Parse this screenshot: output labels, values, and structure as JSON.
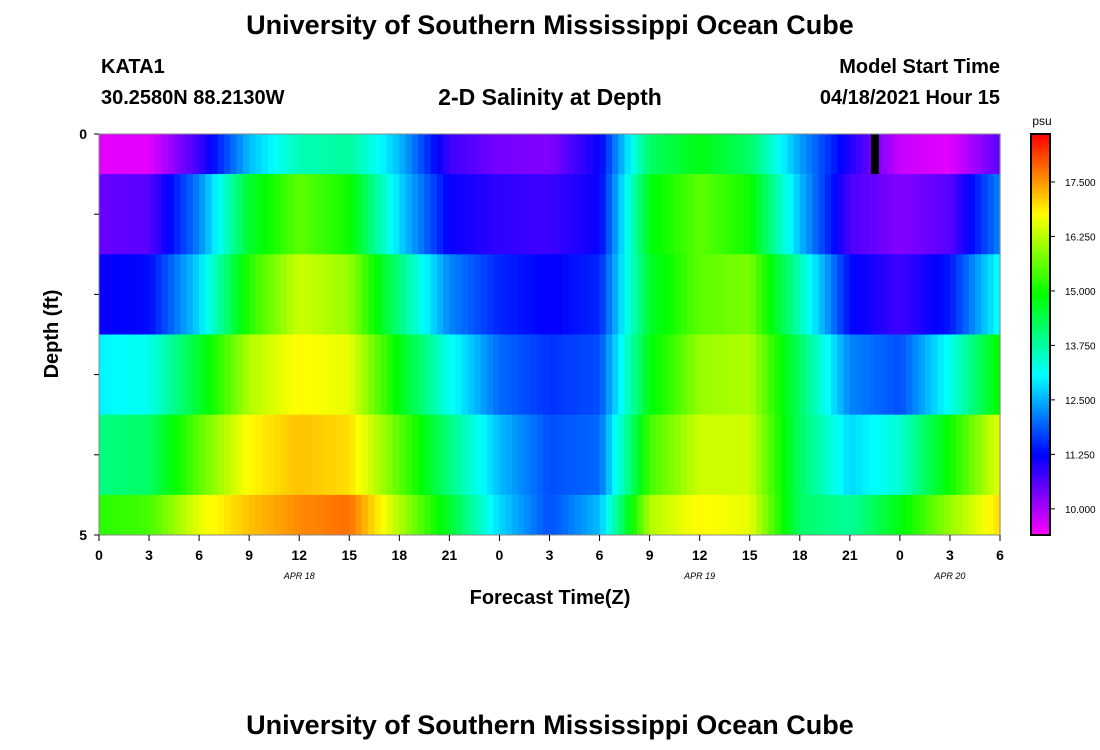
{
  "header": {
    "title": "University of Southern Mississippi Ocean Cube",
    "station_id": "KATA1",
    "station_coords": "30.2580N  88.2130W",
    "plot_title": "2-D Salinity at Depth",
    "model_start_label": "Model Start Time",
    "model_start_value": "04/18/2021 Hour 15"
  },
  "footer": {
    "title": "University of Southern Mississippi Ocean Cube"
  },
  "chart_data": {
    "type": "heatmap",
    "title": "2-D Salinity at Depth",
    "xlabel": "Forecast Time(Z)",
    "ylabel": "Depth (ft)",
    "x_hours": [
      0,
      3,
      6,
      9,
      12,
      15,
      18,
      21,
      24,
      27,
      30,
      33,
      36,
      39,
      42,
      45,
      48,
      51,
      54
    ],
    "x_tick_labels": [
      "0",
      "3",
      "6",
      "9",
      "12",
      "15",
      "18",
      "21",
      "0",
      "3",
      "6",
      "9",
      "12",
      "15",
      "18",
      "21",
      "0",
      "3",
      "6"
    ],
    "x_range_hours": [
      0,
      54
    ],
    "date_labels": [
      {
        "text": "APR 18",
        "hour": 12
      },
      {
        "text": "APR 19",
        "hour": 36
      },
      {
        "text": "APR 20",
        "hour": 51
      }
    ],
    "y_range": [
      0,
      5
    ],
    "y_tick_labels": [
      "0",
      "5"
    ],
    "depth_bands": [
      0,
      1,
      2,
      3,
      4,
      5
    ],
    "rows": [
      {
        "depth_band": "0-0.5 ft",
        "values": [
          9.6,
          9.6,
          10.8,
          12.6,
          13.6,
          13.8,
          12.6,
          10.8,
          10.4,
          10.3,
          11.2,
          14.2,
          14.8,
          14.2,
          12.4,
          11.0,
          9.8,
          9.6,
          10.6
        ]
      },
      {
        "depth_band": "0.5-1.5 ft",
        "values": [
          10.5,
          10.6,
          12.2,
          14.6,
          15.6,
          15.0,
          12.8,
          11.2,
          10.9,
          10.8,
          11.2,
          14.8,
          15.6,
          15.0,
          12.6,
          10.7,
          10.3,
          10.6,
          12.2
        ]
      },
      {
        "depth_band": "1.5-2.5 ft",
        "values": [
          11.2,
          11.3,
          12.8,
          15.2,
          16.4,
          16.0,
          14.0,
          12.2,
          11.5,
          11.2,
          11.5,
          14.6,
          15.6,
          15.8,
          13.6,
          11.3,
          10.8,
          11.4,
          13.2
        ]
      },
      {
        "depth_band": "2.5-3.5 ft",
        "values": [
          13.0,
          13.2,
          14.6,
          16.2,
          16.8,
          16.6,
          14.8,
          13.2,
          12.0,
          11.6,
          11.8,
          14.8,
          16.0,
          16.2,
          14.2,
          12.2,
          11.8,
          13.2,
          15.0
        ]
      },
      {
        "depth_band": "3.5-4.5 ft",
        "values": [
          14.0,
          14.2,
          15.6,
          16.8,
          17.2,
          17.0,
          15.6,
          14.0,
          12.6,
          11.8,
          12.0,
          15.4,
          16.4,
          16.4,
          14.2,
          12.8,
          13.4,
          15.0,
          16.6
        ]
      },
      {
        "depth_band": "4.5-5 ft",
        "values": [
          15.2,
          15.4,
          16.6,
          17.2,
          17.6,
          17.8,
          16.2,
          14.6,
          12.8,
          11.8,
          12.6,
          16.2,
          16.8,
          16.6,
          14.2,
          13.8,
          14.8,
          16.0,
          17.0
        ]
      }
    ],
    "marker": {
      "hour": 46.5,
      "depth": [
        0,
        0.5
      ],
      "color": "#000000"
    },
    "colorbar": {
      "units": "psu",
      "min": 9.4,
      "max": 18.6,
      "tick_values": [
        10.0,
        11.25,
        12.5,
        13.75,
        15.0,
        16.25,
        17.5
      ],
      "tick_labels": [
        "10.000",
        "11.250",
        "12.500",
        "13.750",
        "15.000",
        "16.250",
        "17.500"
      ]
    }
  }
}
